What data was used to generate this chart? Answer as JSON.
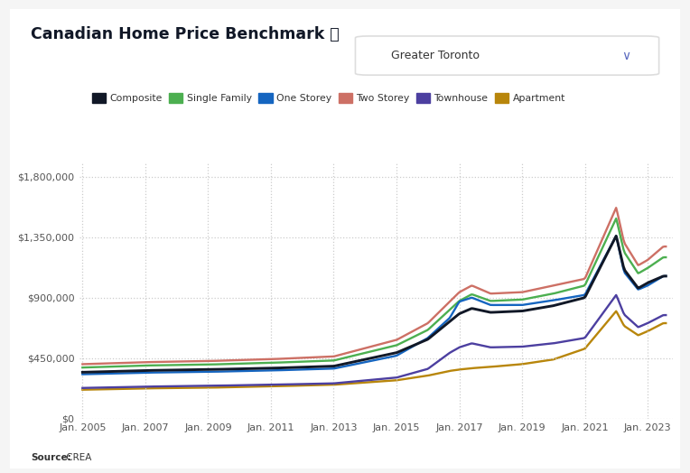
{
  "title": "Canadian Home Price Benchmark ⓘ",
  "subtitle": "Greater Toronto",
  "source_bold": "Source:",
  "source_normal": " CREA",
  "legend": [
    "Composite",
    "Single Family",
    "One Storey",
    "Two Storey",
    "Townhouse",
    "Apartment"
  ],
  "line_colors": [
    "#111827",
    "#4caf50",
    "#1565c0",
    "#cd7065",
    "#4c3fa0",
    "#b8860b"
  ],
  "yticks": [
    0,
    450000,
    900000,
    1350000,
    1800000
  ],
  "ylim": [
    0,
    1900000
  ],
  "xlim": [
    2004.9,
    2023.8
  ],
  "xtick_years": [
    2005,
    2007,
    2009,
    2011,
    2013,
    2015,
    2017,
    2019,
    2021,
    2023
  ],
  "bg_color": "#f5f5f5",
  "card_color": "#ffffff",
  "grid_color": "#cccccc",
  "title_color": "#111827",
  "tick_color": "#555555",
  "knots": {
    "composite_x": [
      2005.0,
      2007.0,
      2009.0,
      2011.0,
      2013.0,
      2015.0,
      2016.0,
      2017.0,
      2017.4,
      2018.0,
      2019.0,
      2020.0,
      2021.0,
      2022.0,
      2022.25,
      2022.7,
      2023.0,
      2023.5
    ],
    "composite_y": [
      345000,
      358000,
      365000,
      375000,
      390000,
      490000,
      590000,
      780000,
      820000,
      790000,
      800000,
      840000,
      900000,
      1360000,
      1110000,
      970000,
      1010000,
      1060000
    ],
    "sf_x": [
      2005.0,
      2007.0,
      2009.0,
      2011.0,
      2013.0,
      2015.0,
      2016.0,
      2017.0,
      2017.4,
      2018.0,
      2019.0,
      2020.0,
      2021.0,
      2022.0,
      2022.25,
      2022.7,
      2023.0,
      2023.5
    ],
    "sf_y": [
      380000,
      395000,
      402000,
      415000,
      432000,
      545000,
      660000,
      875000,
      925000,
      875000,
      885000,
      930000,
      990000,
      1490000,
      1240000,
      1080000,
      1120000,
      1200000
    ],
    "os_x": [
      2005.0,
      2007.0,
      2009.0,
      2011.0,
      2013.0,
      2015.0,
      2016.0,
      2016.7,
      2017.0,
      2017.4,
      2018.0,
      2019.0,
      2020.0,
      2021.0,
      2022.0,
      2022.25,
      2022.7,
      2023.0,
      2023.5
    ],
    "os_y": [
      330000,
      342000,
      348000,
      358000,
      372000,
      468000,
      600000,
      750000,
      870000,
      900000,
      845000,
      845000,
      880000,
      920000,
      1360000,
      1090000,
      960000,
      990000,
      1060000
    ],
    "ts_x": [
      2005.0,
      2007.0,
      2009.0,
      2011.0,
      2013.0,
      2015.0,
      2016.0,
      2017.0,
      2017.4,
      2018.0,
      2019.0,
      2020.0,
      2021.0,
      2022.0,
      2022.25,
      2022.7,
      2023.0,
      2023.5
    ],
    "ts_y": [
      405000,
      420000,
      428000,
      442000,
      462000,
      585000,
      710000,
      940000,
      990000,
      930000,
      940000,
      990000,
      1040000,
      1570000,
      1310000,
      1140000,
      1180000,
      1280000
    ],
    "th_x": [
      2005.0,
      2007.0,
      2009.0,
      2011.0,
      2013.0,
      2015.0,
      2016.0,
      2016.7,
      2017.0,
      2017.4,
      2018.0,
      2019.0,
      2020.0,
      2021.0,
      2022.0,
      2022.25,
      2022.7,
      2023.0,
      2023.5
    ],
    "th_y": [
      228000,
      238000,
      244000,
      252000,
      262000,
      305000,
      370000,
      490000,
      530000,
      560000,
      530000,
      535000,
      560000,
      600000,
      920000,
      775000,
      680000,
      710000,
      770000
    ],
    "ap_x": [
      2005.0,
      2007.0,
      2009.0,
      2011.0,
      2013.0,
      2015.0,
      2016.0,
      2016.7,
      2017.0,
      2017.4,
      2018.0,
      2019.0,
      2020.0,
      2021.0,
      2022.0,
      2022.25,
      2022.7,
      2023.0,
      2023.5
    ],
    "ap_y": [
      215000,
      225000,
      230000,
      240000,
      252000,
      285000,
      320000,
      355000,
      365000,
      375000,
      385000,
      405000,
      440000,
      520000,
      800000,
      690000,
      620000,
      650000,
      710000
    ]
  }
}
